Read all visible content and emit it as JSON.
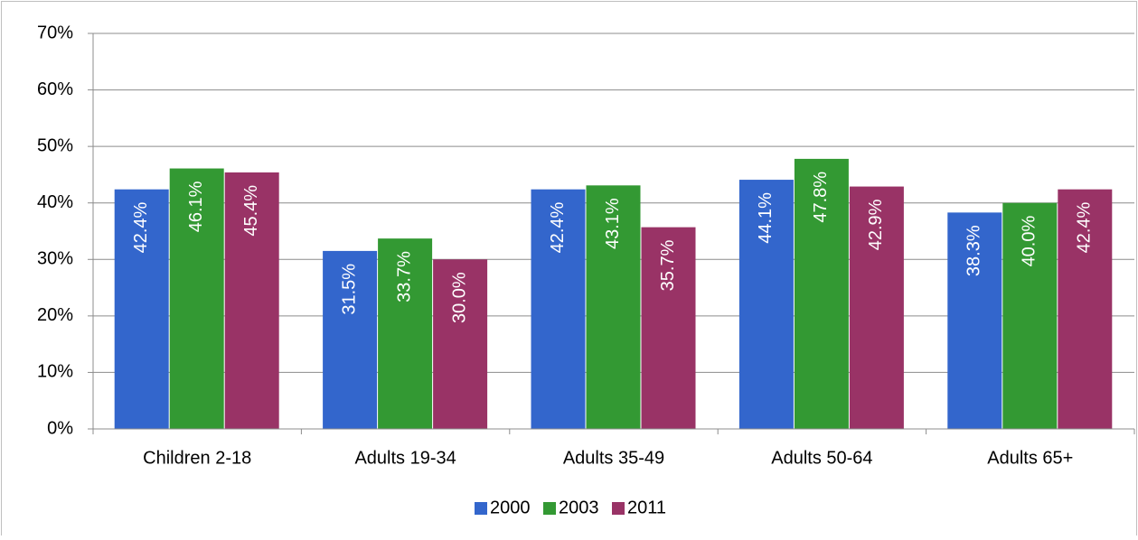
{
  "chart_data": {
    "type": "bar",
    "categories": [
      "Children 2-18",
      "Adults 19-34",
      "Adults 35-49",
      "Adults 50-64",
      "Adults 65+"
    ],
    "series": [
      {
        "name": "2000",
        "color": "#3366cc",
        "values": [
          42.4,
          31.5,
          42.4,
          44.1,
          38.3
        ],
        "value_labels": [
          "42.4%",
          "31.5%",
          "42.4%",
          "44.1%",
          "38.3%"
        ]
      },
      {
        "name": "2003",
        "color": "#339933",
        "values": [
          46.1,
          33.7,
          43.1,
          47.8,
          40.0
        ],
        "value_labels": [
          "46.1%",
          "33.7%",
          "43.1%",
          "47.8%",
          "40.0%"
        ]
      },
      {
        "name": "2011",
        "color": "#993366",
        "values": [
          45.4,
          30.0,
          35.7,
          42.9,
          42.4
        ],
        "value_labels": [
          "45.4%",
          "30.0%",
          "35.7%",
          "42.9%",
          "42.4%"
        ]
      }
    ],
    "ylim": [
      0,
      70
    ],
    "yticks": [
      {
        "value": 0,
        "label": "0%"
      },
      {
        "value": 10,
        "label": "10%"
      },
      {
        "value": 20,
        "label": "20%"
      },
      {
        "value": 30,
        "label": "30%"
      },
      {
        "value": 40,
        "label": "40%"
      },
      {
        "value": 50,
        "label": "50%"
      },
      {
        "value": 60,
        "label": "60%"
      },
      {
        "value": 70,
        "label": "70%"
      }
    ],
    "grid": true,
    "legend": "bottom"
  }
}
